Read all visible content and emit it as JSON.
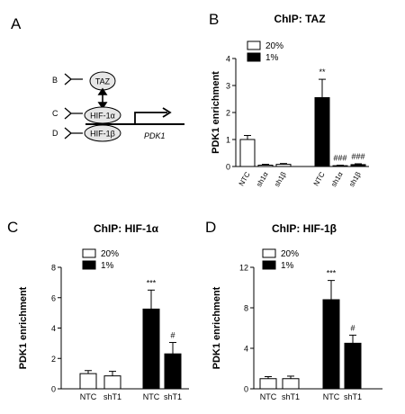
{
  "panel_letters": [
    "A",
    "B",
    "C",
    "D"
  ],
  "diagram": {
    "antibody_labels": [
      "B",
      "C",
      "D"
    ],
    "protein_labels": [
      "TAZ",
      "HIF-1α",
      "HIF-1β"
    ],
    "gene_label": "PDK1"
  },
  "legend_labels": [
    "20%",
    "1%"
  ],
  "colors": {
    "open_bar": "#ffffff",
    "filled_bar": "#000000",
    "stroke": "#000000"
  },
  "chart_data": [
    {
      "panel": "B",
      "type": "bar",
      "title": "ChIP: TAZ",
      "ylabel": "PDK1 enrichment",
      "xlabel": "",
      "ylim": [
        0,
        4
      ],
      "yticks": [
        0,
        1,
        2,
        3,
        4
      ],
      "legend": {
        "position": "top-left",
        "entries": [
          "20%",
          "1%"
        ]
      },
      "categories": [
        "NTC",
        "sh1α",
        "sh1β",
        "NTC",
        "sh1α",
        "sh1β"
      ],
      "condition": [
        "20%",
        "20%",
        "20%",
        "1%",
        "1%",
        "1%"
      ],
      "values": [
        1.0,
        0.05,
        0.08,
        2.55,
        0.03,
        0.07
      ],
      "errors": [
        0.15,
        0.03,
        0.03,
        0.68,
        0.02,
        0.03
      ],
      "annotations": [
        "",
        "",
        "",
        "**",
        "###",
        "###"
      ]
    },
    {
      "panel": "C",
      "type": "bar",
      "title": "ChIP: HIF-1α",
      "ylabel": "PDK1 enrichment",
      "xlabel": "",
      "ylim": [
        0,
        8
      ],
      "yticks": [
        0,
        2,
        4,
        6,
        8
      ],
      "legend": {
        "position": "top-left",
        "entries": [
          "20%",
          "1%"
        ]
      },
      "categories": [
        "NTC",
        "shT1",
        "NTC",
        "shT1"
      ],
      "condition": [
        "20%",
        "20%",
        "1%",
        "1%"
      ],
      "values": [
        1.0,
        0.85,
        5.25,
        2.3
      ],
      "errors": [
        0.2,
        0.3,
        1.25,
        0.75
      ],
      "annotations": [
        "",
        "",
        "***",
        "#"
      ]
    },
    {
      "panel": "D",
      "type": "bar",
      "title": "ChIP: HIF-1β",
      "ylabel": "PDK1 enrichment",
      "xlabel": "",
      "ylim": [
        0,
        12
      ],
      "yticks": [
        0,
        4,
        8,
        12
      ],
      "legend": {
        "position": "top-left",
        "entries": [
          "20%",
          "1%"
        ]
      },
      "categories": [
        "NTC",
        "shT1",
        "NTC",
        "shT1"
      ],
      "condition": [
        "20%",
        "20%",
        "1%",
        "1%"
      ],
      "values": [
        1.0,
        1.0,
        8.8,
        4.5
      ],
      "errors": [
        0.2,
        0.25,
        1.9,
        0.8
      ],
      "annotations": [
        "",
        "",
        "***",
        "#"
      ]
    }
  ]
}
